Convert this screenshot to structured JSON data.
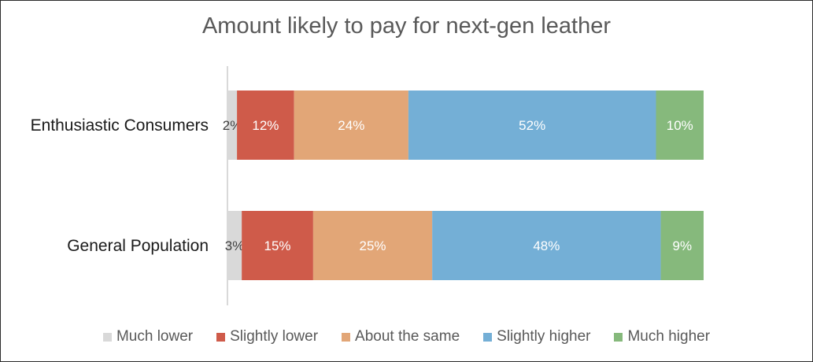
{
  "chart_data": {
    "type": "bar",
    "orientation": "horizontal",
    "stacked": true,
    "title": "Amount likely to pay for next-gen leather",
    "xlabel": "",
    "ylabel": "",
    "xlim": [
      0,
      100
    ],
    "grid": false,
    "legend_position": "bottom",
    "categories": [
      "Enthusiastic Consumers",
      "General Population"
    ],
    "series": [
      {
        "name": "Much lower",
        "color": "#d9d9d9",
        "label_color": "#404040",
        "values": [
          2,
          3
        ],
        "labels": [
          "2%",
          "3%"
        ]
      },
      {
        "name": "Slightly lower",
        "color": "#cf5b4a",
        "label_color": "#ffffff",
        "values": [
          12,
          15
        ],
        "labels": [
          "12%",
          "15%"
        ]
      },
      {
        "name": "About the same",
        "color": "#e2a677",
        "label_color": "#ffffff",
        "values": [
          24,
          25
        ],
        "labels": [
          "24%",
          "25%"
        ]
      },
      {
        "name": "Slightly higher",
        "color": "#74afd6",
        "label_color": "#ffffff",
        "values": [
          52,
          48
        ],
        "labels": [
          "52%",
          "48%"
        ]
      },
      {
        "name": "Much higher",
        "color": "#86b97c",
        "label_color": "#ffffff",
        "values": [
          10,
          9
        ],
        "labels": [
          "10%",
          "9%"
        ]
      }
    ]
  }
}
